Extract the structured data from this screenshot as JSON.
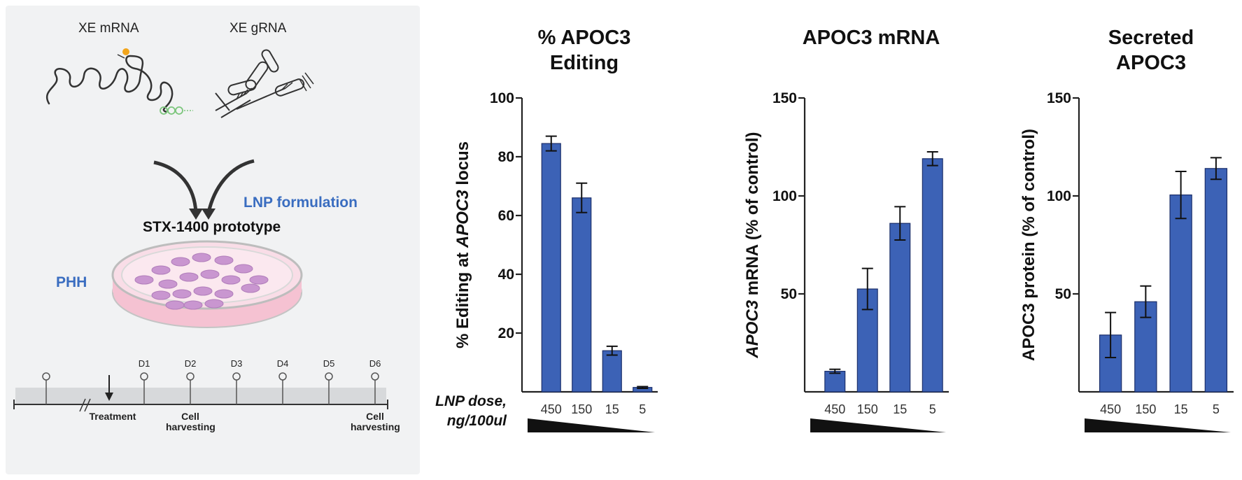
{
  "schematic": {
    "xe_mrna_label": "XE mRNA",
    "xe_grna_label": "XE gRNA",
    "lnp_label": "LNP formulation",
    "prototype_label": "STX-1400 prototype",
    "phh_label": "PHH",
    "timeline": {
      "days": [
        "D1",
        "D2",
        "D3",
        "D4",
        "D5",
        "D6"
      ],
      "treatment_label": "Treatment",
      "harvest_label_1": "Cell harvesting",
      "harvest_label_2": "Cell harvesting"
    }
  },
  "dose_axis": {
    "label_line1": "LNP dose,",
    "label_line2": "ng/100ul"
  },
  "chart_data": [
    {
      "type": "bar",
      "title_lines": [
        "% APOC3",
        "Editing"
      ],
      "ylabel_parts": [
        "% Editing at ",
        "APOC3",
        " locus"
      ],
      "categories": [
        "450",
        "150",
        "15",
        "5"
      ],
      "values": [
        84.5,
        66,
        14,
        1.5
      ],
      "errors": [
        2.5,
        5,
        1.5,
        0.3
      ],
      "ylim": [
        0,
        100
      ],
      "yticks": [
        20,
        40,
        60,
        80,
        100
      ],
      "color": "#3c62b6"
    },
    {
      "type": "bar",
      "title_lines": [
        "APOC3 mRNA"
      ],
      "ylabel_parts": [
        "APOC3",
        " mRNA (% of control)"
      ],
      "categories": [
        "450",
        "150",
        "15",
        "5"
      ],
      "values": [
        10.5,
        52.5,
        86,
        119
      ],
      "errors": [
        1,
        10.5,
        8.5,
        3.5
      ],
      "ylim": [
        0,
        150
      ],
      "yticks": [
        50,
        100,
        150
      ],
      "color": "#3c62b6"
    },
    {
      "type": "bar",
      "title_lines": [
        "Secreted",
        "APOC3"
      ],
      "ylabel_parts": [
        "APOC3 protein (% of control)"
      ],
      "categories": [
        "450",
        "150",
        "15",
        "5"
      ],
      "values": [
        29,
        46,
        100.5,
        114
      ],
      "errors": [
        11.5,
        8,
        12,
        5.5
      ],
      "ylim": [
        0,
        150
      ],
      "yticks": [
        50,
        100,
        150
      ],
      "color": "#3c62b6"
    }
  ]
}
